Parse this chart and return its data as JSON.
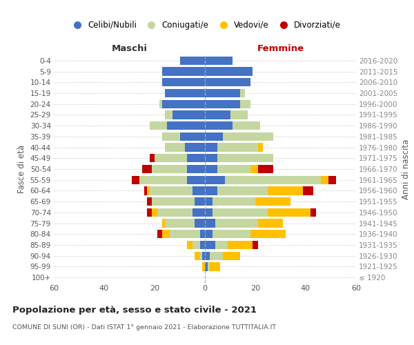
{
  "age_groups": [
    "100+",
    "95-99",
    "90-94",
    "85-89",
    "80-84",
    "75-79",
    "70-74",
    "65-69",
    "60-64",
    "55-59",
    "50-54",
    "45-49",
    "40-44",
    "35-39",
    "30-34",
    "25-29",
    "20-24",
    "15-19",
    "10-14",
    "5-9",
    "0-4"
  ],
  "birth_years": [
    "≤ 1920",
    "1921-1925",
    "1926-1930",
    "1931-1935",
    "1936-1940",
    "1941-1945",
    "1946-1950",
    "1951-1955",
    "1956-1960",
    "1961-1965",
    "1966-1970",
    "1971-1975",
    "1976-1980",
    "1981-1985",
    "1986-1990",
    "1991-1995",
    "1996-2000",
    "2001-2005",
    "2006-2010",
    "2011-2015",
    "2016-2020"
  ],
  "colors": {
    "celibi": "#4472c4",
    "coniugati": "#c5d7a0",
    "vedovi": "#ffc000",
    "divorziati": "#c00000"
  },
  "maschi": {
    "celibi": [
      0,
      0,
      1,
      2,
      2,
      4,
      5,
      4,
      5,
      7,
      7,
      7,
      8,
      10,
      15,
      13,
      17,
      16,
      17,
      17,
      10
    ],
    "coniugati": [
      0,
      0,
      1,
      3,
      12,
      12,
      14,
      17,
      17,
      19,
      14,
      13,
      8,
      7,
      7,
      3,
      1,
      0,
      0,
      0,
      0
    ],
    "vedovi": [
      0,
      1,
      2,
      2,
      3,
      1,
      2,
      0,
      1,
      0,
      0,
      0,
      0,
      0,
      0,
      0,
      0,
      0,
      0,
      0,
      0
    ],
    "divorziati": [
      0,
      0,
      0,
      0,
      2,
      0,
      2,
      2,
      1,
      3,
      4,
      2,
      0,
      0,
      0,
      0,
      0,
      0,
      0,
      0,
      0
    ]
  },
  "femmine": {
    "celibi": [
      0,
      1,
      2,
      4,
      3,
      4,
      3,
      3,
      5,
      8,
      5,
      5,
      5,
      7,
      11,
      10,
      14,
      14,
      18,
      19,
      11
    ],
    "coniugati": [
      0,
      1,
      5,
      5,
      15,
      17,
      22,
      17,
      20,
      38,
      13,
      22,
      16,
      20,
      11,
      7,
      4,
      2,
      0,
      0,
      0
    ],
    "vedovi": [
      0,
      4,
      7,
      10,
      14,
      10,
      17,
      14,
      14,
      3,
      3,
      0,
      2,
      0,
      0,
      0,
      0,
      0,
      0,
      0,
      0
    ],
    "divorziati": [
      0,
      0,
      0,
      2,
      0,
      0,
      2,
      0,
      4,
      3,
      6,
      0,
      0,
      0,
      0,
      0,
      0,
      0,
      0,
      0,
      0
    ]
  },
  "xlim": 60,
  "title": "Popolazione per età, sesso e stato civile - 2021",
  "subtitle": "COMUNE DI SUNI (OR) - Dati ISTAT 1° gennaio 2021 - Elaborazione TUTTITALIA.IT",
  "ylabel_left": "Fasce di età",
  "ylabel_right": "Anni di nascita",
  "xlabel_left": "Maschi",
  "xlabel_right": "Femmine",
  "legend_labels": [
    "Celibi/Nubili",
    "Coniugati/e",
    "Vedovi/e",
    "Divorziati/e"
  ],
  "background_color": "#ffffff",
  "grid_color": "#cccccc"
}
